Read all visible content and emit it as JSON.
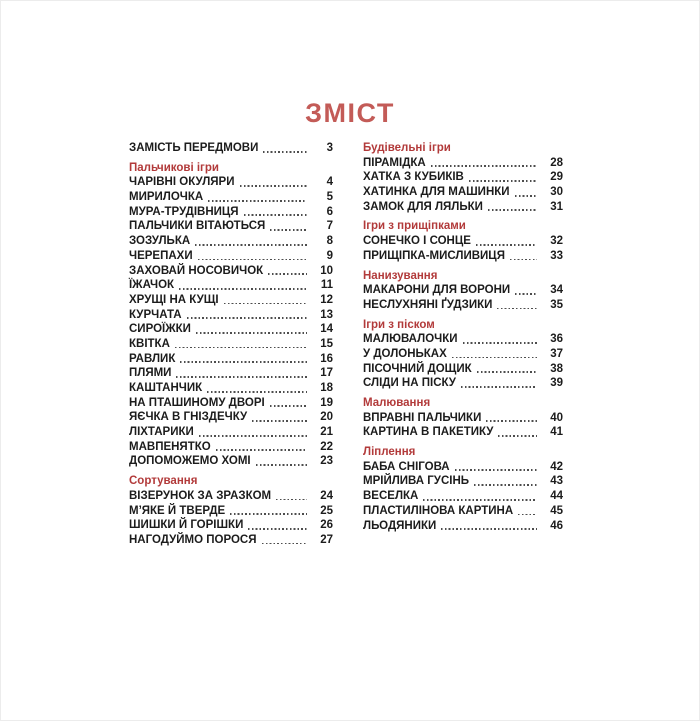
{
  "title": "ЗМІСТ",
  "colors": {
    "title": "#c35b57",
    "section": "#b23a3a",
    "text": "#1c1c1c",
    "leader": "#4d4d4d"
  },
  "columns": [
    {
      "items": [
        {
          "type": "entry",
          "title": "ЗАМІСТЬ ПЕРЕДМОВИ",
          "page": "3"
        },
        {
          "type": "section",
          "title": "Пальчикові ігри"
        },
        {
          "type": "entry",
          "title": "ЧАРІВНІ ОКУЛЯРИ",
          "page": "4"
        },
        {
          "type": "entry",
          "title": "МИРИЛОЧКА",
          "page": "5"
        },
        {
          "type": "entry",
          "title": "МУРА-ТРУДІВНИЦЯ",
          "page": "6"
        },
        {
          "type": "entry",
          "title": "ПАЛЬЧИКИ ВІТАЮТЬСЯ",
          "page": "7"
        },
        {
          "type": "entry",
          "title": "ЗОЗУЛЬКА",
          "page": "8"
        },
        {
          "type": "entry",
          "title": "ЧЕРЕПАХИ",
          "page": "9"
        },
        {
          "type": "entry",
          "title": "ЗАХОВАЙ НОСОВИЧОК",
          "page": "10"
        },
        {
          "type": "entry",
          "title": "ЇЖАЧОК",
          "page": "11"
        },
        {
          "type": "entry",
          "title": "ХРУЩІ НА КУЩІ",
          "page": "12"
        },
        {
          "type": "entry",
          "title": "КУРЧАТА",
          "page": "13"
        },
        {
          "type": "entry",
          "title": "СИРОЇЖКИ",
          "page": "14"
        },
        {
          "type": "entry",
          "title": "КВІТКА",
          "page": "15"
        },
        {
          "type": "entry",
          "title": "РАВЛИК",
          "page": "16"
        },
        {
          "type": "entry",
          "title": "ПЛЯМИ",
          "page": "17"
        },
        {
          "type": "entry",
          "title": "КАШТАНЧИК",
          "page": "18"
        },
        {
          "type": "entry",
          "title": "НА ПТАШИНОМУ ДВОРІ",
          "page": "19"
        },
        {
          "type": "entry",
          "title": "ЯЄЧКА В ГНІЗДЕЧКУ",
          "page": "20"
        },
        {
          "type": "entry",
          "title": "ЛІХТАРИКИ",
          "page": "21"
        },
        {
          "type": "entry",
          "title": "МАВПЕНЯТКО",
          "page": "22"
        },
        {
          "type": "entry",
          "title": "ДОПОМОЖЕМО ХОМІ",
          "page": "23"
        },
        {
          "type": "section",
          "title": "Сортування"
        },
        {
          "type": "entry",
          "title": "ВІЗЕРУНОК ЗА ЗРАЗКОМ",
          "page": "24"
        },
        {
          "type": "entry",
          "title": "М’ЯКЕ Й ТВЕРДЕ",
          "page": "25"
        },
        {
          "type": "entry",
          "title": "ШИШКИ Й ГОРІШКИ",
          "page": "26"
        },
        {
          "type": "entry",
          "title": "НАГОДУЙМО ПОРОСЯ",
          "page": "27"
        }
      ]
    },
    {
      "items": [
        {
          "type": "section",
          "title": "Будівельні ігри"
        },
        {
          "type": "entry",
          "title": "ПІРАМІДКА",
          "page": "28"
        },
        {
          "type": "entry",
          "title": "ХАТКА З КУБИКІВ",
          "page": "29"
        },
        {
          "type": "entry",
          "title": "ХАТИНКА ДЛЯ МАШИНКИ",
          "page": "30"
        },
        {
          "type": "entry",
          "title": "ЗАМОК ДЛЯ ЛЯЛЬКИ",
          "page": "31"
        },
        {
          "type": "section",
          "title": "Ігри з прищіпками"
        },
        {
          "type": "entry",
          "title": "СОНЕЧКО І СОНЦЕ",
          "page": "32"
        },
        {
          "type": "entry",
          "title": "ПРИЩІПКА-МИСЛИВИЦЯ",
          "page": "33"
        },
        {
          "type": "section",
          "title": "Нанизування"
        },
        {
          "type": "entry",
          "title": "МАКАРОНИ ДЛЯ ВОРОНИ",
          "page": "34"
        },
        {
          "type": "entry",
          "title": "НЕСЛУХНЯНІ ҐУДЗИКИ",
          "page": "35"
        },
        {
          "type": "section",
          "title": "Ігри з піском"
        },
        {
          "type": "entry",
          "title": "МАЛЮВАЛОЧКИ",
          "page": "36"
        },
        {
          "type": "entry",
          "title": "У ДОЛОНЬКАХ",
          "page": "37"
        },
        {
          "type": "entry",
          "title": "ПІСОЧНИЙ ДОЩИК",
          "page": "38"
        },
        {
          "type": "entry",
          "title": "СЛІДИ НА ПІСКУ",
          "page": "39"
        },
        {
          "type": "section",
          "title": "Малювання"
        },
        {
          "type": "entry",
          "title": "ВПРАВНІ ПАЛЬЧИКИ",
          "page": "40"
        },
        {
          "type": "entry",
          "title": "КАРТИНА В ПАКЕТИКУ",
          "page": "41"
        },
        {
          "type": "section",
          "title": "Ліплення"
        },
        {
          "type": "entry",
          "title": "БАБА СНІГОВА",
          "page": "42"
        },
        {
          "type": "entry",
          "title": "МРІЙЛИВА ГУСІНЬ",
          "page": "43"
        },
        {
          "type": "entry",
          "title": "ВЕСЕЛКА",
          "page": "44"
        },
        {
          "type": "entry",
          "title": "ПЛАСТИЛІНОВА КАРТИНА",
          "page": "45"
        },
        {
          "type": "entry",
          "title": "ЛЬОДЯНИКИ",
          "page": "46"
        }
      ]
    }
  ]
}
